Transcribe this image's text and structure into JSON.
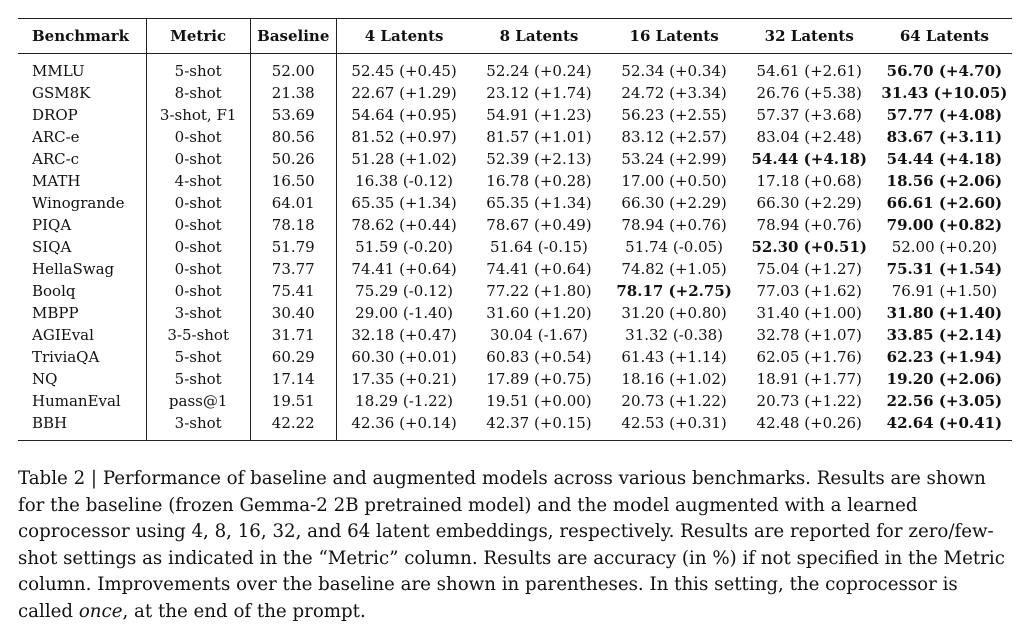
{
  "table": {
    "headers": [
      "Benchmark",
      "Metric",
      "Baseline",
      "4 Latents",
      "8 Latents",
      "16 Latents",
      "32 Latents",
      "64 Latents"
    ],
    "rows": [
      {
        "benchmark": "MMLU",
        "metric": "5-shot",
        "baseline": "52.00",
        "cells": [
          "52.45 (+0.45)",
          "52.24 (+0.24)",
          "52.34 (+0.34)",
          "54.61 (+2.61)",
          "56.70 (+4.70)"
        ],
        "bold": [
          4
        ]
      },
      {
        "benchmark": "GSM8K",
        "metric": "8-shot",
        "baseline": "21.38",
        "cells": [
          "22.67 (+1.29)",
          "23.12 (+1.74)",
          "24.72 (+3.34)",
          "26.76 (+5.38)",
          "31.43 (+10.05)"
        ],
        "bold": [
          4
        ]
      },
      {
        "benchmark": "DROP",
        "metric": "3-shot, F1",
        "baseline": "53.69",
        "cells": [
          "54.64 (+0.95)",
          "54.91 (+1.23)",
          "56.23 (+2.55)",
          "57.37 (+3.68)",
          "57.77 (+4.08)"
        ],
        "bold": [
          4
        ]
      },
      {
        "benchmark": "ARC-e",
        "metric": "0-shot",
        "baseline": "80.56",
        "cells": [
          "81.52 (+0.97)",
          "81.57 (+1.01)",
          "83.12 (+2.57)",
          "83.04 (+2.48)",
          "83.67 (+3.11)"
        ],
        "bold": [
          4
        ]
      },
      {
        "benchmark": "ARC-c",
        "metric": "0-shot",
        "baseline": "50.26",
        "cells": [
          "51.28 (+1.02)",
          "52.39 (+2.13)",
          "53.24 (+2.99)",
          "54.44 (+4.18)",
          "54.44 (+4.18)"
        ],
        "bold": [
          3,
          4
        ]
      },
      {
        "benchmark": "MATH",
        "metric": "4-shot",
        "baseline": "16.50",
        "cells": [
          "16.38 (-0.12)",
          "16.78 (+0.28)",
          "17.00 (+0.50)",
          "17.18 (+0.68)",
          "18.56 (+2.06)"
        ],
        "bold": [
          4
        ]
      },
      {
        "benchmark": "Winogrande",
        "metric": "0-shot",
        "baseline": "64.01",
        "cells": [
          "65.35 (+1.34)",
          "65.35 (+1.34)",
          "66.30 (+2.29)",
          "66.30 (+2.29)",
          "66.61 (+2.60)"
        ],
        "bold": [
          4
        ]
      },
      {
        "benchmark": "PIQA",
        "metric": "0-shot",
        "baseline": "78.18",
        "cells": [
          "78.62 (+0.44)",
          "78.67 (+0.49)",
          "78.94 (+0.76)",
          "78.94 (+0.76)",
          "79.00 (+0.82)"
        ],
        "bold": [
          4
        ]
      },
      {
        "benchmark": "SIQA",
        "metric": "0-shot",
        "baseline": "51.79",
        "cells": [
          "51.59 (-0.20)",
          "51.64 (-0.15)",
          "51.74 (-0.05)",
          "52.30 (+0.51)",
          "52.00 (+0.20)"
        ],
        "bold": [
          3
        ]
      },
      {
        "benchmark": "HellaSwag",
        "metric": "0-shot",
        "baseline": "73.77",
        "cells": [
          "74.41 (+0.64)",
          "74.41 (+0.64)",
          "74.82 (+1.05)",
          "75.04 (+1.27)",
          "75.31 (+1.54)"
        ],
        "bold": [
          4
        ]
      },
      {
        "benchmark": "Boolq",
        "metric": "0-shot",
        "baseline": "75.41",
        "cells": [
          "75.29 (-0.12)",
          "77.22 (+1.80)",
          "78.17 (+2.75)",
          "77.03 (+1.62)",
          "76.91 (+1.50)"
        ],
        "bold": [
          2
        ]
      },
      {
        "benchmark": "MBPP",
        "metric": "3-shot",
        "baseline": "30.40",
        "cells": [
          "29.00 (-1.40)",
          "31.60 (+1.20)",
          "31.20 (+0.80)",
          "31.40 (+1.00)",
          "31.80 (+1.40)"
        ],
        "bold": [
          4
        ]
      },
      {
        "benchmark": "AGIEval",
        "metric": "3-5-shot",
        "baseline": "31.71",
        "cells": [
          "32.18 (+0.47)",
          "30.04 (-1.67)",
          "31.32 (-0.38)",
          "32.78 (+1.07)",
          "33.85 (+2.14)"
        ],
        "bold": [
          4
        ]
      },
      {
        "benchmark": "TriviaQA",
        "metric": "5-shot",
        "baseline": "60.29",
        "cells": [
          "60.30 (+0.01)",
          "60.83 (+0.54)",
          "61.43 (+1.14)",
          "62.05 (+1.76)",
          "62.23 (+1.94)"
        ],
        "bold": [
          4
        ]
      },
      {
        "benchmark": "NQ",
        "metric": "5-shot",
        "baseline": "17.14",
        "cells": [
          "17.35 (+0.21)",
          "17.89 (+0.75)",
          "18.16 (+1.02)",
          "18.91 (+1.77)",
          "19.20 (+2.06)"
        ],
        "bold": [
          4
        ]
      },
      {
        "benchmark": "HumanEval",
        "metric": "pass@1",
        "baseline": "19.51",
        "cells": [
          "18.29 (-1.22)",
          "19.51 (+0.00)",
          "20.73 (+1.22)",
          "20.73 (+1.22)",
          "22.56 (+3.05)"
        ],
        "bold": [
          4
        ]
      },
      {
        "benchmark": "BBH",
        "metric": "3-shot",
        "baseline": "42.22",
        "cells": [
          "42.36 (+0.14)",
          "42.37 (+0.15)",
          "42.53 (+0.31)",
          "42.48 (+0.26)",
          "42.64 (+0.41)"
        ],
        "bold": [
          4
        ]
      }
    ]
  },
  "caption": {
    "part1": "Table 2 | Performance of baseline and augmented models across various benchmarks. Results are shown for the baseline (frozen Gemma-2 2B pretrained model) and the model augmented with a learned coprocessor using 4, 8, 16, 32, and 64 latent embeddings, respectively. Results are reported for zero/few-shot settings as indicated in the “Metric” column. Results are accuracy (in %) if not specified in the Metric column. Improvements over the baseline are shown in parentheses. In this setting, the coprocessor is called ",
    "emphasis": "once",
    "part2": ", at the end of the prompt."
  }
}
